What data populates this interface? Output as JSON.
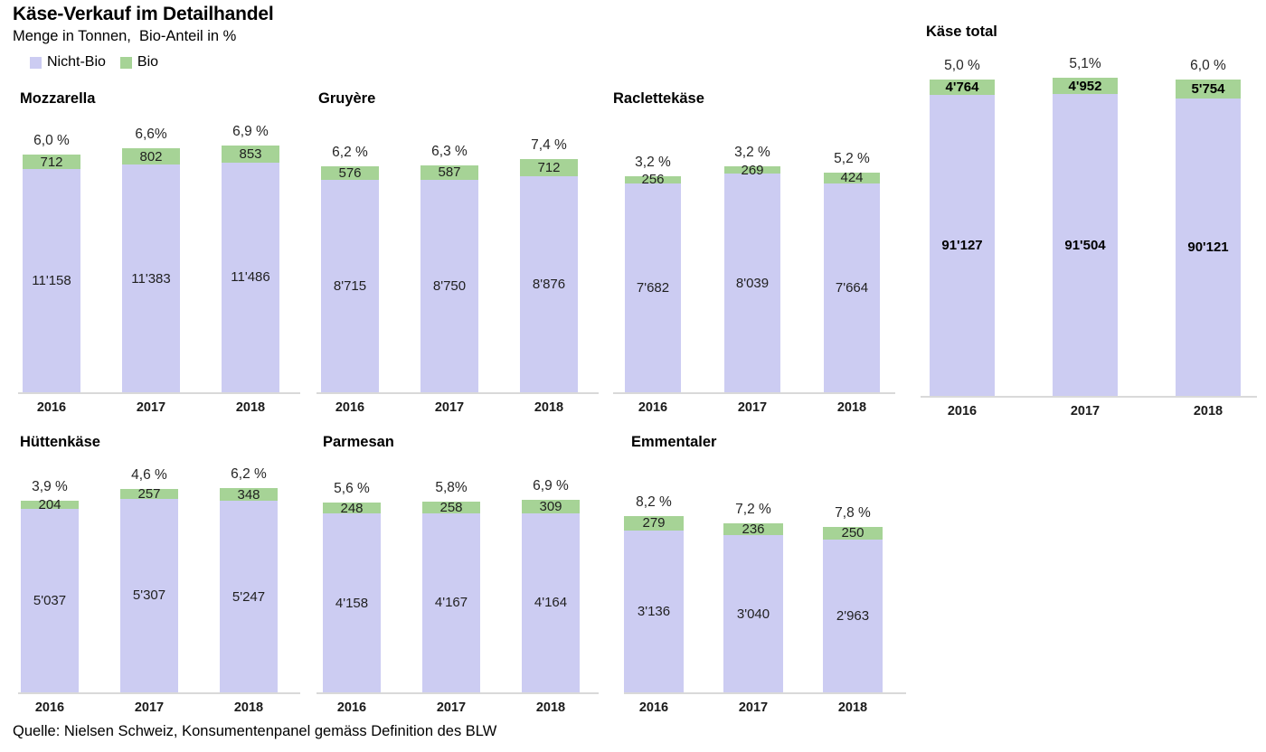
{
  "header": {
    "title": "Käse-Verkauf im Detailhandel",
    "subtitle": "Menge in Tonnen,  Bio-Anteil in %",
    "legend": [
      {
        "label": "Nicht-Bio",
        "color": "#ccccf2"
      },
      {
        "label": "Bio",
        "color": "#a6d396"
      }
    ]
  },
  "footer": {
    "source": "Quelle: Nielsen Schweiz, Konsumentenpanel gemäss Definition des BLW"
  },
  "colors": {
    "nicht_bio": "#ccccf2",
    "bio": "#a6d396",
    "axis": "#d9d9d9"
  },
  "chart_data": {
    "type": "bar",
    "stacked": true,
    "unit": "Tonnen",
    "title": "Käse-Verkauf im Detailhandel",
    "subtitle": "Menge in Tonnen, Bio-Anteil in %",
    "grid": false,
    "legend_position": "top-left",
    "scale_note": "each mini chart scaled to its own max stacked total",
    "categories": [
      "2016",
      "2017",
      "2018"
    ],
    "charts": [
      {
        "name": "Mozzarella",
        "bars": [
          {
            "year": "2016",
            "nicht_bio": 11158,
            "bio": 712,
            "nicht_bio_label": "11'158",
            "bio_label": "712",
            "percent": "6,0 %"
          },
          {
            "year": "2017",
            "nicht_bio": 11383,
            "bio": 802,
            "nicht_bio_label": "11'383",
            "bio_label": "802",
            "percent": "6,6%"
          },
          {
            "year": "2018",
            "nicht_bio": 11486,
            "bio": 853,
            "nicht_bio_label": "11'486",
            "bio_label": "853",
            "percent": "6,9 %"
          }
        ]
      },
      {
        "name": "Gruyère",
        "bars": [
          {
            "year": "2016",
            "nicht_bio": 8715,
            "bio": 576,
            "nicht_bio_label": "8'715",
            "bio_label": "576",
            "percent": "6,2 %"
          },
          {
            "year": "2017",
            "nicht_bio": 8750,
            "bio": 587,
            "nicht_bio_label": "8'750",
            "bio_label": "587",
            "percent": "6,3 %"
          },
          {
            "year": "2018",
            "nicht_bio": 8876,
            "bio": 712,
            "nicht_bio_label": "8'876",
            "bio_label": "712",
            "percent": "7,4 %"
          }
        ]
      },
      {
        "name": "Raclettekäse",
        "bars": [
          {
            "year": "2016",
            "nicht_bio": 7682,
            "bio": 256,
            "nicht_bio_label": "7'682",
            "bio_label": "256",
            "percent": "3,2 %"
          },
          {
            "year": "2017",
            "nicht_bio": 8039,
            "bio": 269,
            "nicht_bio_label": "8'039",
            "bio_label": "269",
            "percent": "3,2 %"
          },
          {
            "year": "2018",
            "nicht_bio": 7664,
            "bio": 424,
            "nicht_bio_label": "7'664",
            "bio_label": "424",
            "percent": "5,2 %"
          }
        ]
      },
      {
        "name": "Käse total",
        "bars": [
          {
            "year": "2016",
            "nicht_bio": 91127,
            "bio": 4764,
            "nicht_bio_label": "91'127",
            "bio_label": "4'764",
            "percent": "5,0 %"
          },
          {
            "year": "2017",
            "nicht_bio": 91504,
            "bio": 4952,
            "nicht_bio_label": "91'504",
            "bio_label": "4'952",
            "percent": "5,1%"
          },
          {
            "year": "2018",
            "nicht_bio": 90121,
            "bio": 5754,
            "nicht_bio_label": "90'121",
            "bio_label": "5'754",
            "percent": "6,0 %"
          }
        ]
      },
      {
        "name": "Hüttenkäse",
        "bars": [
          {
            "year": "2016",
            "nicht_bio": 5037,
            "bio": 204,
            "nicht_bio_label": "5'037",
            "bio_label": "204",
            "percent": "3,9 %"
          },
          {
            "year": "2017",
            "nicht_bio": 5307,
            "bio": 257,
            "nicht_bio_label": "5'307",
            "bio_label": "257",
            "percent": "4,6 %"
          },
          {
            "year": "2018",
            "nicht_bio": 5247,
            "bio": 348,
            "nicht_bio_label": "5'247",
            "bio_label": "348",
            "percent": "6,2 %"
          }
        ]
      },
      {
        "name": "Parmesan",
        "bars": [
          {
            "year": "2016",
            "nicht_bio": 4158,
            "bio": 248,
            "nicht_bio_label": "4'158",
            "bio_label": "248",
            "percent": "5,6 %"
          },
          {
            "year": "2017",
            "nicht_bio": 4167,
            "bio": 258,
            "nicht_bio_label": "4'167",
            "bio_label": "258",
            "percent": "5,8%"
          },
          {
            "year": "2018",
            "nicht_bio": 4164,
            "bio": 309,
            "nicht_bio_label": "4'164",
            "bio_label": "309",
            "percent": "6,9 %"
          }
        ]
      },
      {
        "name": "Emmentaler",
        "bars": [
          {
            "year": "2016",
            "nicht_bio": 3136,
            "bio": 279,
            "nicht_bio_label": "3'136",
            "bio_label": "279",
            "percent": "8,2 %"
          },
          {
            "year": "2017",
            "nicht_bio": 3040,
            "bio": 236,
            "nicht_bio_label": "3'040",
            "bio_label": "236",
            "percent": "7,2 %"
          },
          {
            "year": "2018",
            "nicht_bio": 2963,
            "bio": 250,
            "nicht_bio_label": "2'963",
            "bio_label": "250",
            "percent": "7,8 %"
          }
        ]
      }
    ]
  }
}
